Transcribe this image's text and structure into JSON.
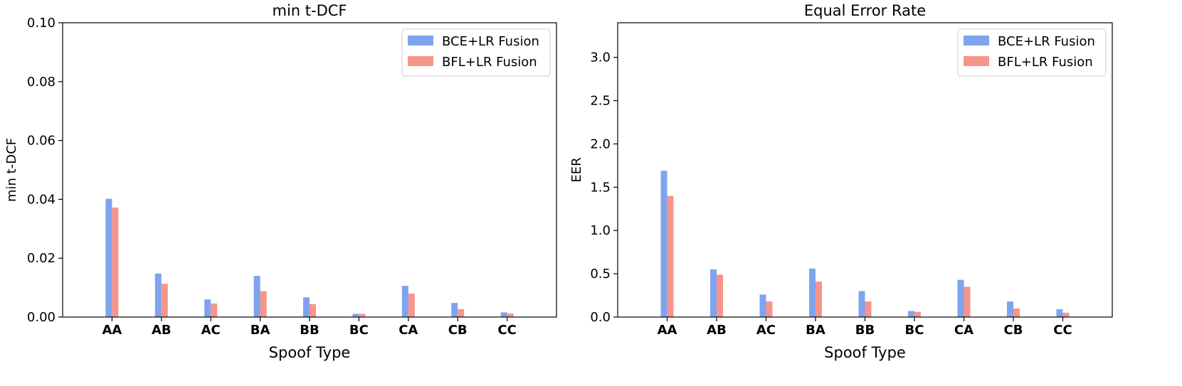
{
  "chart_data": [
    {
      "type": "bar",
      "title": "min t-DCF",
      "xlabel": "Spoof Type",
      "ylabel": "min t-DCF",
      "categories": [
        "AA",
        "AB",
        "AC",
        "BA",
        "BB",
        "BC",
        "CA",
        "CB",
        "CC"
      ],
      "series": [
        {
          "name": "BCE+LR Fusion",
          "color": "#7fa4ee",
          "values": [
            0.0402,
            0.0148,
            0.006,
            0.014,
            0.0067,
            0.0011,
            0.0106,
            0.0048,
            0.0016
          ]
        },
        {
          "name": "BFL+LR Fusion",
          "color": "#f7958a",
          "values": [
            0.0372,
            0.0113,
            0.0046,
            0.0088,
            0.0044,
            0.0011,
            0.008,
            0.0027,
            0.0012
          ]
        }
      ],
      "ylim": [
        0,
        0.1
      ],
      "yticks": [
        "0.00",
        "0.02",
        "0.04",
        "0.06",
        "0.08",
        "0.10"
      ],
      "ytick_values": [
        0,
        0.02,
        0.04,
        0.06,
        0.08,
        0.1
      ],
      "legend": "top-right",
      "grid": false
    },
    {
      "type": "bar",
      "title": "Equal Error Rate",
      "xlabel": "Spoof Type",
      "ylabel": "EER",
      "categories": [
        "AA",
        "AB",
        "AC",
        "BA",
        "BB",
        "BC",
        "CA",
        "CB",
        "CC"
      ],
      "series": [
        {
          "name": "BCE+LR Fusion",
          "color": "#7fa4ee",
          "values": [
            1.69,
            0.55,
            0.26,
            0.56,
            0.3,
            0.07,
            0.43,
            0.18,
            0.09
          ]
        },
        {
          "name": "BFL+LR Fusion",
          "color": "#f7958a",
          "values": [
            1.4,
            0.49,
            0.18,
            0.41,
            0.18,
            0.06,
            0.35,
            0.1,
            0.05
          ]
        }
      ],
      "ylim": [
        0,
        3.4
      ],
      "yticks": [
        "0.0",
        "0.5",
        "1.0",
        "1.5",
        "2.0",
        "2.5",
        "3.0"
      ],
      "ytick_values": [
        0,
        0.5,
        1.0,
        1.5,
        2.0,
        2.5,
        3.0
      ],
      "legend": "top-right",
      "grid": false
    }
  ]
}
